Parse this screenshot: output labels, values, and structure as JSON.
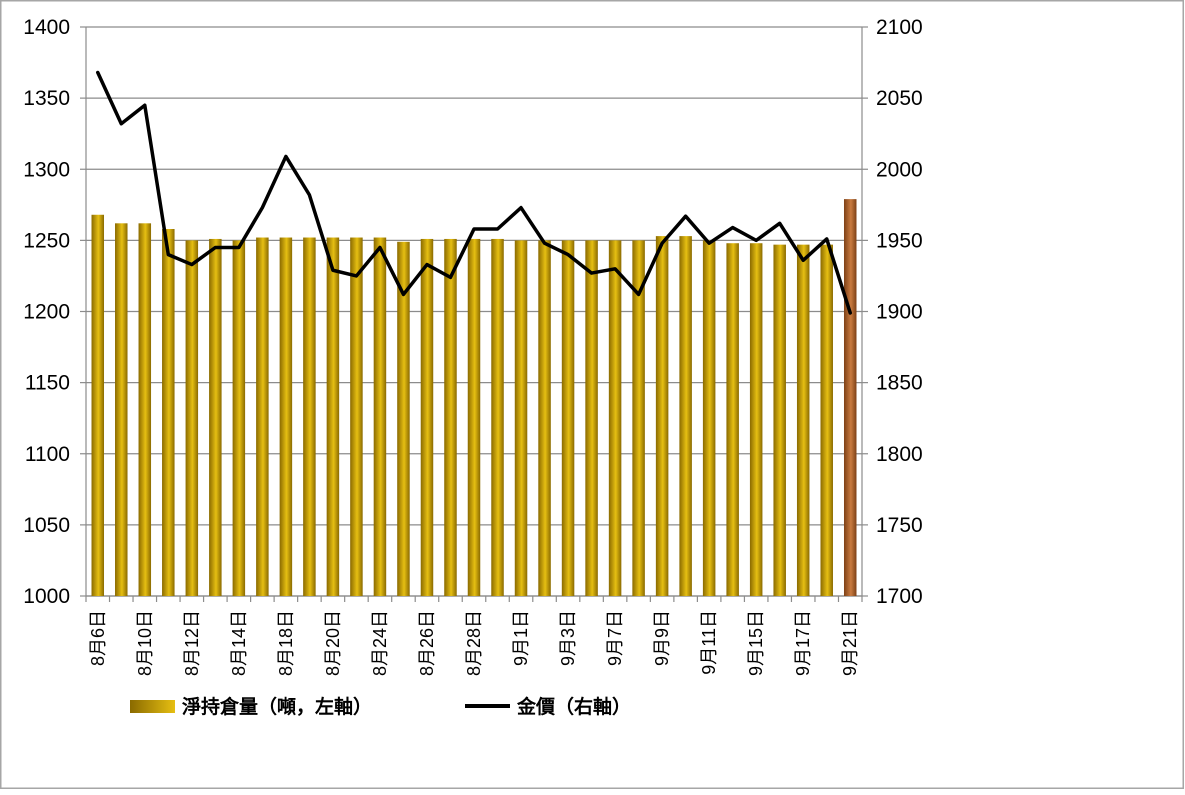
{
  "chart_data": {
    "type": "bar",
    "categories": [
      "8月6日",
      "",
      "8月10日",
      "",
      "8月12日",
      "",
      "8月14日",
      "",
      "8月18日",
      "",
      "8月20日",
      "",
      "8月24日",
      "",
      "8月26日",
      "",
      "8月28日",
      "",
      "9月1日",
      "",
      "9月3日",
      "",
      "9月7日",
      "",
      "9月9日",
      "",
      "9月11日",
      "",
      "9月15日",
      "",
      "9月17日",
      "",
      "9月21日"
    ],
    "series": [
      {
        "name": "淨持倉量（噸，左軸）",
        "type": "bar",
        "axis": "left",
        "values": [
          1268,
          1262,
          1262,
          1258,
          1250,
          1251,
          1250,
          1252,
          1252,
          1252,
          1252,
          1252,
          1252,
          1249,
          1251,
          1251,
          1251,
          1251,
          1250,
          1250,
          1250,
          1250,
          1250,
          1250,
          1253,
          1253,
          1250,
          1248,
          1248,
          1247,
          1247,
          1247,
          1279
        ]
      },
      {
        "name": "金價（右軸）",
        "type": "line",
        "axis": "right",
        "values": [
          2068,
          2032,
          2045,
          1940,
          1933,
          1945,
          1945,
          1973,
          2009,
          1982,
          1929,
          1925,
          1945,
          1912,
          1933,
          1924,
          1958,
          1958,
          1973,
          1948,
          1940,
          1927,
          1930,
          1912,
          1948,
          1967,
          1948,
          1959,
          1950,
          1962,
          1936,
          1951,
          1899
        ]
      }
    ],
    "y_left": {
      "ylim": [
        1000,
        1400
      ],
      "ticks": [
        1400,
        1350,
        1300,
        1250,
        1200,
        1150,
        1100,
        1050,
        1000
      ]
    },
    "y_right": {
      "ylim": [
        1700,
        2100
      ],
      "ticks": [
        2100,
        2050,
        2000,
        1950,
        1900,
        1850,
        1800,
        1750,
        1700
      ]
    },
    "grid": true,
    "legend_position": "bottom-left"
  },
  "colors": {
    "bar": "#e6bf12",
    "bar_dark": "#8a6a00",
    "bar_last": "#c97b40",
    "bar_last_dark": "#7d4016",
    "line": "#000000",
    "grid": "#8c8c8c",
    "border": "#a6a6a6",
    "background": "#ffffff"
  }
}
